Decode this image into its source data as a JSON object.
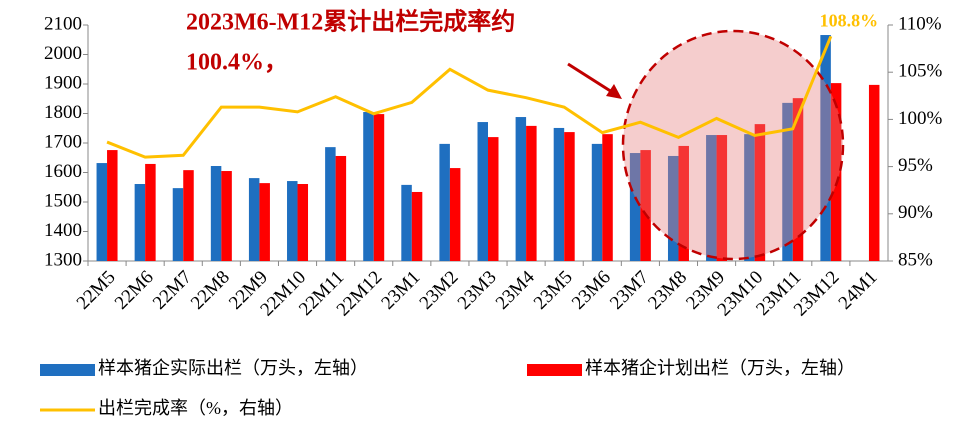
{
  "chart_data": {
    "type": "bar",
    "annotation": [
      "2023M6-M12累计出栏完成率约",
      "100.4%，"
    ],
    "categories": [
      "22M5",
      "22M6",
      "22M7",
      "22M8",
      "22M9",
      "22M10",
      "22M11",
      "22M12",
      "23M1",
      "23M2",
      "23M3",
      "23M4",
      "23M5",
      "23M6",
      "23M7",
      "23M8",
      "23M9",
      "23M10",
      "23M11",
      "23M12",
      "24M1"
    ],
    "series": [
      {
        "name": "样本猪企实际出栏（万头，左轴）",
        "type": "bar",
        "color": "#1f6fc0",
        "values": [
          1632,
          1561,
          1547,
          1622,
          1581,
          1571,
          1686,
          1805,
          1558,
          1697,
          1771,
          1788,
          1751,
          1697,
          1666,
          1656,
          1727,
          1730,
          1836,
          2066,
          null
        ]
      },
      {
        "name": "样本猪企计划出栏（万头，左轴）",
        "type": "bar",
        "color": "#ff0000",
        "values": [
          1676,
          1629,
          1608,
          1605,
          1564,
          1561,
          1656,
          1798,
          1534,
          1615,
          1720,
          1758,
          1737,
          1730,
          1676,
          1690,
          1727,
          1764,
          1852,
          1903,
          1897
        ]
      },
      {
        "name": "出栏完成率（%，右轴）",
        "type": "line",
        "axis": "y2",
        "color": "#ffc000",
        "values": [
          97.6,
          96.0,
          96.2,
          101.3,
          101.3,
          100.8,
          102.4,
          100.6,
          101.8,
          105.3,
          103.1,
          102.3,
          101.3,
          98.6,
          99.7,
          98.1,
          100.1,
          98.3,
          99.0,
          108.8,
          null
        ],
        "value_labels": [
          null,
          null,
          null,
          null,
          null,
          null,
          null,
          null,
          null,
          null,
          null,
          null,
          null,
          null,
          null,
          null,
          null,
          null,
          null,
          "108.8%",
          null
        ]
      }
    ],
    "ylim": [
      1300,
      2100
    ],
    "yticks": [
      1300,
      1400,
      1500,
      1600,
      1700,
      1800,
      1900,
      2000,
      2100
    ],
    "y2lim": [
      85,
      110
    ],
    "y2ticks": [
      {
        "value": 85,
        "label": "85%"
      },
      {
        "value": 90,
        "label": "90%"
      },
      {
        "value": 95,
        "label": "95%"
      },
      {
        "value": 100,
        "label": "100%"
      },
      {
        "value": 105,
        "label": "105%"
      },
      {
        "value": 110,
        "label": "110%"
      }
    ],
    "grid": false,
    "legend": "bottom"
  }
}
